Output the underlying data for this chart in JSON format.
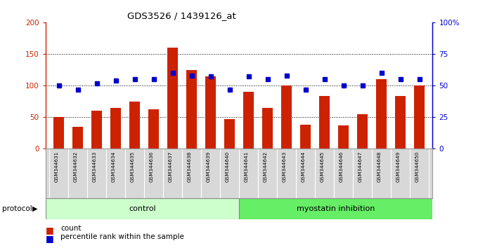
{
  "title": "GDS3526 / 1439126_at",
  "samples": [
    "GSM344631",
    "GSM344632",
    "GSM344633",
    "GSM344634",
    "GSM344635",
    "GSM344636",
    "GSM344637",
    "GSM344638",
    "GSM344639",
    "GSM344640",
    "GSM344641",
    "GSM344642",
    "GSM344643",
    "GSM344644",
    "GSM344645",
    "GSM344646",
    "GSM344647",
    "GSM344648",
    "GSM344649",
    "GSM344650"
  ],
  "counts": [
    50,
    35,
    60,
    65,
    75,
    63,
    160,
    125,
    115,
    47,
    90,
    65,
    100,
    38,
    83,
    37,
    55,
    110,
    83,
    100
  ],
  "percentile": [
    50,
    47,
    52,
    54,
    55,
    55,
    60,
    58,
    57,
    47,
    57,
    55,
    58,
    47,
    55,
    50,
    50,
    60,
    55,
    55
  ],
  "bar_color": "#cc2200",
  "dot_color": "#0000cc",
  "ylim_left": [
    0,
    200
  ],
  "ylim_right": [
    0,
    100
  ],
  "yticks_left": [
    0,
    50,
    100,
    150,
    200
  ],
  "ytick_labels_left": [
    "0",
    "50",
    "100",
    "150",
    "200"
  ],
  "yticks_right": [
    0,
    25,
    50,
    75,
    100
  ],
  "ytick_labels_right": [
    "0",
    "25",
    "50",
    "75",
    "100%"
  ],
  "grid_values": [
    50,
    100,
    150
  ],
  "control_count": 10,
  "myostatin_count": 10,
  "control_label": "control",
  "treatment_label": "myostatin inhibition",
  "protocol_label": "protocol",
  "legend_count": "count",
  "legend_percentile": "percentile rank within the sample",
  "control_color": "#ccffcc",
  "treatment_color": "#66ee66",
  "xlab_bg_color": "#d8d8d8",
  "plot_bg": "#ffffff"
}
